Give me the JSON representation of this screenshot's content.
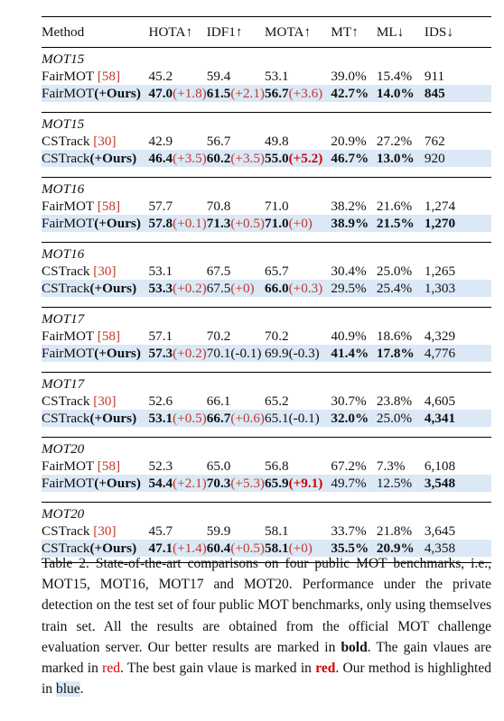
{
  "table": {
    "headers": [
      "Method",
      "HOTA↑",
      "IDF1↑",
      "MOTA↑",
      "MT↑",
      "ML↓",
      "IDS↓"
    ],
    "groups": [
      {
        "title": "MOT15",
        "base": {
          "name": "FairMOT",
          "ref": "[58]",
          "cells": [
            "45.2",
            "59.4",
            "53.1",
            "39.0%",
            "15.4%",
            "911"
          ]
        },
        "ours": {
          "name": "FairMOT(+Ours)",
          "cells": [
            {
              "v": "47.0",
              "b": true,
              "g": "(+1.8)"
            },
            {
              "v": "61.5",
              "b": true,
              "g": "(+2.1)"
            },
            {
              "v": "56.7",
              "b": true,
              "g": "(+3.6)"
            },
            {
              "v": "42.7%",
              "b": true
            },
            {
              "v": "14.0%",
              "b": true
            },
            {
              "v": "845",
              "b": true
            }
          ]
        }
      },
      {
        "title": "MOT15",
        "base": {
          "name": "CSTrack",
          "ref": "[30]",
          "cells": [
            "42.9",
            "56.7",
            "49.8",
            "20.9%",
            "27.2%",
            "762"
          ]
        },
        "ours": {
          "name": "CSTrack(+Ours)",
          "cells": [
            {
              "v": "46.4",
              "b": true,
              "g": "(+3.5)"
            },
            {
              "v": "60.2",
              "b": true,
              "g": "(+3.5)"
            },
            {
              "v": "55.0",
              "b": true,
              "g": "(+5.2)",
              "best": true
            },
            {
              "v": "46.7%",
              "b": true
            },
            {
              "v": "13.0%",
              "b": true
            },
            {
              "v": "920"
            }
          ]
        }
      },
      {
        "title": "MOT16",
        "base": {
          "name": "FairMOT",
          "ref": "[58]",
          "cells": [
            "57.7",
            "70.8",
            "71.0",
            "38.2%",
            "21.6%",
            "1,274"
          ]
        },
        "ours": {
          "name": "FairMOT(+Ours)",
          "cells": [
            {
              "v": "57.8",
              "b": true,
              "g": "(+0.1)"
            },
            {
              "v": "71.3",
              "b": true,
              "g": "(+0.5)"
            },
            {
              "v": "71.0",
              "b": true,
              "g": "(+0)"
            },
            {
              "v": "38.9%",
              "b": true
            },
            {
              "v": "21.5%",
              "b": true
            },
            {
              "v": "1,270",
              "b": true
            }
          ]
        }
      },
      {
        "title": "MOT16",
        "base": {
          "name": "CSTrack",
          "ref": "[30]",
          "cells": [
            "53.1",
            "67.5",
            "65.7",
            "30.4%",
            "25.0%",
            "1,265"
          ]
        },
        "ours": {
          "name": "CSTrack(+Ours)",
          "cells": [
            {
              "v": "53.3",
              "b": true,
              "g": "(+0.2)"
            },
            {
              "v": "67.5",
              "g": "(+0)"
            },
            {
              "v": "66.0",
              "b": true,
              "g": "(+0.3)"
            },
            {
              "v": "29.5%"
            },
            {
              "v": "25.4%"
            },
            {
              "v": "1,303"
            }
          ]
        }
      },
      {
        "title": "MOT17",
        "base": {
          "name": "FairMOT",
          "ref": "[58]",
          "cells": [
            "57.1",
            "70.2",
            "70.2",
            "40.9%",
            "18.6%",
            "4,329"
          ]
        },
        "ours": {
          "name": "FairMOT(+Ours)",
          "cells": [
            {
              "v": "57.3",
              "b": true,
              "g": "(+0.2)"
            },
            {
              "v": "70.1(-0.1)"
            },
            {
              "v": "69.9(-0.3)"
            },
            {
              "v": "41.4%",
              "b": true
            },
            {
              "v": "17.8%",
              "b": true
            },
            {
              "v": "4,776"
            }
          ]
        }
      },
      {
        "title": "MOT17",
        "base": {
          "name": "CSTrack",
          "ref": "[30]",
          "cells": [
            "52.6",
            "66.1",
            "65.2",
            "30.7%",
            "23.8%",
            "4,605"
          ]
        },
        "ours": {
          "name": "CSTrack(+Ours)",
          "cells": [
            {
              "v": "53.1",
              "b": true,
              "g": "(+0.5)"
            },
            {
              "v": "66.7",
              "b": true,
              "g": "(+0.6)"
            },
            {
              "v": "65.1(-0.1)"
            },
            {
              "v": "32.0%",
              "b": true
            },
            {
              "v": "25.0%"
            },
            {
              "v": "4,341",
              "b": true
            }
          ]
        }
      },
      {
        "title": "MOT20",
        "base": {
          "name": "FairMOT",
          "ref": "[58]",
          "cells": [
            "52.3",
            "65.0",
            "56.8",
            "67.2%",
            "7.3%",
            "6,108"
          ]
        },
        "ours": {
          "name": "FairMOT(+Ours)",
          "cells": [
            {
              "v": "54.4",
              "b": true,
              "g": "(+2.1)"
            },
            {
              "v": "70.3",
              "b": true,
              "g": "(+5.3)"
            },
            {
              "v": "65.9",
              "b": true,
              "g": "(+9.1)",
              "best": true
            },
            {
              "v": "49.7%"
            },
            {
              "v": "12.5%"
            },
            {
              "v": "3,548",
              "b": true
            }
          ]
        }
      },
      {
        "title": "MOT20",
        "base": {
          "name": "CSTrack",
          "ref": "[30]",
          "cells": [
            "45.7",
            "59.9",
            "58.1",
            "33.7%",
            "21.8%",
            "3,645"
          ]
        },
        "ours": {
          "name": "CSTrack(+Ours)",
          "cells": [
            {
              "v": "47.1",
              "b": true,
              "g": "(+1.4)"
            },
            {
              "v": "60.4",
              "b": true,
              "g": "(+0.5)"
            },
            {
              "v": "58.1",
              "b": true,
              "g": "(+0)"
            },
            {
              "v": "35.5%",
              "b": true
            },
            {
              "v": "20.9%",
              "b": true
            },
            {
              "v": "4,358"
            }
          ]
        }
      }
    ]
  },
  "caption": {
    "s1": "Table 2. State-of-the-art comparisons on four public MOT benchmarks, i.e., MOT15, MOT16, MOT17 and MOT20. Performance under the private detection on the test set of four public MOT benchmarks, only using themselves train set. All the results are obtained from the official MOT challenge evaluation server. Our better results are marked in ",
    "bold_word": "bold",
    "s2": ". The gain vlaues are marked in ",
    "red_word": "red",
    "s3": ". The best gain vlaue is marked in ",
    "red_bold_word": "red",
    "s4": ". Our method is highlighted in ",
    "blue_word": "blue",
    "s5": "."
  },
  "colors": {
    "gain_red": "#c0392b",
    "best_red": "#d40000",
    "highlight_blue": "#dbe8f6"
  }
}
